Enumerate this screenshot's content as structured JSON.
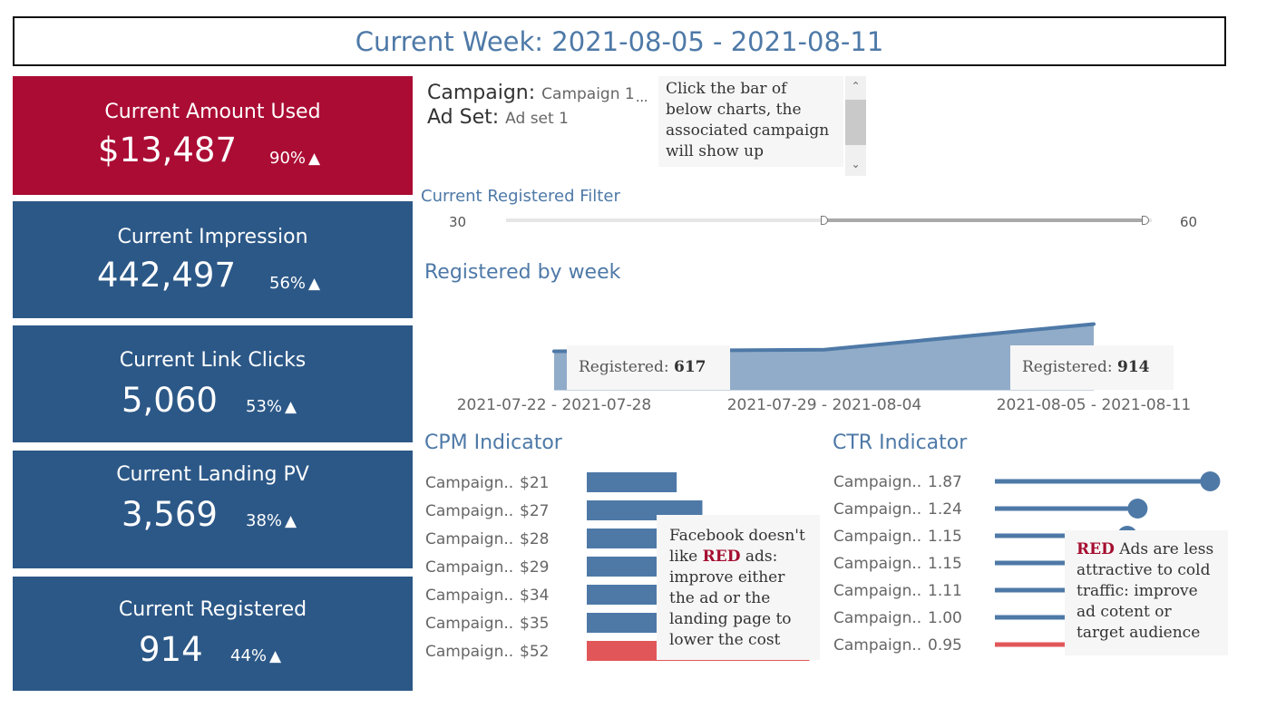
{
  "header": {
    "title": "Current Week: 2021-08-05 - 2021-08-11"
  },
  "kpis": [
    {
      "label": "Current Amount Used",
      "value": "$13,487",
      "pct": "90%",
      "arrow": "▲",
      "color": "#ab0c34"
    },
    {
      "label": "Current Impression",
      "value": "442,497",
      "pct": "56%",
      "arrow": "▲",
      "color": "#2c5887"
    },
    {
      "label": "Current Link Clicks",
      "value": "5,060",
      "pct": "53%",
      "arrow": "▲",
      "color": "#2c5887"
    },
    {
      "label": "Current Landing PV",
      "value": "3,569",
      "pct": "38%",
      "arrow": "▲",
      "color": "#2c5887"
    },
    {
      "label": "Current Registered",
      "value": "914",
      "pct": "44%",
      "arrow": "▲",
      "color": "#2c5887"
    }
  ],
  "filters": {
    "campaign_label": "Campaign:",
    "campaign_value": "Campaign 1",
    "adset_label": "Ad Set:",
    "adset_value": "Ad set 1",
    "ellipsis": "..."
  },
  "note": {
    "text": "Click the bar of below charts, the associated campaign will show up"
  },
  "slider": {
    "title": "Current Registered Filter",
    "min_label": "30",
    "max_label": "60",
    "low_fraction": 0.49,
    "high_fraction": 0.99
  },
  "registered_chart": {
    "title": "Registered by week",
    "tooltip_prefix": "Registered: ",
    "tooltip_left_value": "617",
    "tooltip_right_value": "914",
    "color": "#4e79a7"
  },
  "cpm": {
    "title": "CPM Indicator",
    "tooltip_prefix": "Facebook doesn't like ",
    "tooltip_red": "RED",
    "tooltip_suffix": " ads: improve either the ad or the landing page to lower the cost"
  },
  "ctr": {
    "title": "CTR Indicator",
    "tooltip_red": "RED",
    "tooltip_suffix": " Ads are less attractive to cold traffic: improve ad cotent or target audience"
  },
  "chart_data": [
    {
      "type": "area",
      "title": "Registered by week",
      "categories": [
        "2021-07-22 - 2021-07-28",
        "2021-07-29 - 2021-08-04",
        "2021-08-05 - 2021-08-11"
      ],
      "values": [
        617,
        635,
        914
      ],
      "ylim": [
        0,
        1000
      ]
    },
    {
      "type": "bar",
      "title": "CPM Indicator",
      "categories": [
        "Campaign..",
        "Campaign..",
        "Campaign..",
        "Campaign..",
        "Campaign..",
        "Campaign..",
        "Campaign.."
      ],
      "labels": [
        "$21",
        "$27",
        "$28",
        "$29",
        "$34",
        "$35",
        "$52"
      ],
      "values": [
        21,
        27,
        28,
        29,
        34,
        35,
        52
      ],
      "colors": [
        "#4e79a7",
        "#4e79a7",
        "#4e79a7",
        "#4e79a7",
        "#4e79a7",
        "#4e79a7",
        "#e15759"
      ],
      "xlim": [
        0,
        54
      ]
    },
    {
      "type": "bar",
      "title": "CTR Indicator",
      "categories": [
        "Campaign..",
        "Campaign..",
        "Campaign..",
        "Campaign..",
        "Campaign..",
        "Campaign..",
        "Campaign.."
      ],
      "labels": [
        "1.87",
        "1.24",
        "1.15",
        "1.15",
        "1.11",
        "1.00",
        "0.95"
      ],
      "values": [
        1.87,
        1.24,
        1.15,
        1.15,
        1.11,
        1.0,
        0.95
      ],
      "colors": [
        "#4e79a7",
        "#4e79a7",
        "#4e79a7",
        "#4e79a7",
        "#4e79a7",
        "#4e79a7",
        "#e15759"
      ],
      "xlim": [
        0,
        1.93
      ]
    }
  ]
}
